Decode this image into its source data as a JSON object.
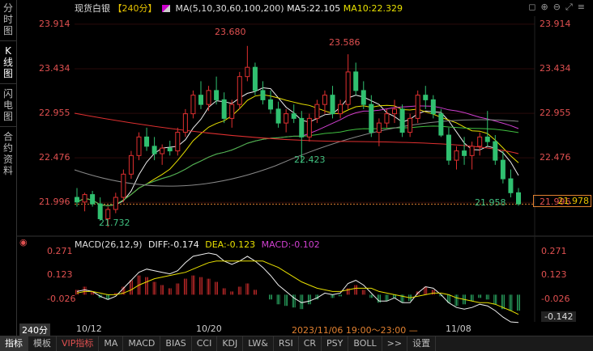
{
  "sidebar": {
    "items": [
      {
        "label": "分时图",
        "chars": [
          "分",
          "时",
          "图"
        ]
      },
      {
        "label": "K线图",
        "chars": [
          "K",
          "线",
          "图"
        ]
      },
      {
        "label": "闪电图",
        "chars": [
          "闪",
          "电",
          "图"
        ]
      },
      {
        "label": "合约资料",
        "chars": [
          "合",
          "约",
          "资",
          "料"
        ]
      }
    ]
  },
  "header": {
    "instrument": "现货白银",
    "period": "【240分】",
    "ma_label": "MA(5,10,30,60,100,200)",
    "ma5": "MA5:22.105",
    "ma10": "MA10:22.329"
  },
  "price_axis": {
    "left": [
      "23.914",
      "23.434",
      "22.955",
      "22.476",
      "21.996"
    ],
    "right": [
      "23.914",
      "23.434",
      "22.955",
      "22.476",
      "21.996"
    ],
    "current": "21.978"
  },
  "annotations": {
    "high1": "23.680",
    "high2": "23.586",
    "low1": "21.732",
    "low2": "22.423",
    "low3": "21.958"
  },
  "macd": {
    "header": "MACD(26,12,9)",
    "diff": "DIFF:-0.174",
    "dea": "DEA:-0.123",
    "macd": "MACD:-0.102",
    "axis": [
      "0.271",
      "0.123",
      "-0.026",
      "-0.142"
    ]
  },
  "dates": {
    "period_btn": "240分",
    "d1": "10/12",
    "d2": "10/20",
    "range": "2023/11/06 19:00～23:00 —",
    "d3": "11/08"
  },
  "bottom_tabs": [
    "指标",
    "模板",
    "VIP指标",
    "MA",
    "MACD",
    "BIAS",
    "CCI",
    "KDJ",
    "LW&",
    "RSI",
    "CR",
    "PSY",
    "BOLL",
    ">>",
    "设置"
  ],
  "colors": {
    "up": "#e03030",
    "down": "#30c070",
    "bg": "#000000"
  },
  "chart_data": {
    "type": "candlestick",
    "ylim": [
      21.65,
      24.0
    ],
    "ohlc": [
      [
        22.05,
        22.15,
        21.95,
        22.0
      ],
      [
        22.0,
        22.1,
        21.9,
        22.08
      ],
      [
        22.08,
        22.12,
        21.95,
        21.98
      ],
      [
        21.98,
        22.05,
        21.8,
        21.82
      ],
      [
        21.82,
        21.95,
        21.73,
        21.92
      ],
      [
        21.92,
        22.1,
        21.88,
        22.05
      ],
      [
        22.05,
        22.35,
        22.0,
        22.3
      ],
      [
        22.3,
        22.55,
        22.25,
        22.5
      ],
      [
        22.5,
        22.75,
        22.45,
        22.7
      ],
      [
        22.7,
        22.8,
        22.55,
        22.6
      ],
      [
        22.6,
        22.7,
        22.45,
        22.52
      ],
      [
        22.52,
        22.62,
        22.4,
        22.58
      ],
      [
        22.58,
        22.66,
        22.5,
        22.55
      ],
      [
        22.55,
        22.8,
        22.5,
        22.75
      ],
      [
        22.75,
        23.0,
        22.7,
        22.95
      ],
      [
        22.95,
        23.2,
        22.9,
        23.15
      ],
      [
        23.15,
        23.3,
        23.0,
        23.05
      ],
      [
        23.05,
        23.25,
        22.98,
        23.2
      ],
      [
        23.2,
        23.35,
        23.05,
        23.1
      ],
      [
        23.1,
        23.18,
        22.85,
        22.9
      ],
      [
        22.9,
        23.1,
        22.8,
        23.05
      ],
      [
        23.05,
        23.4,
        23.0,
        23.35
      ],
      [
        23.35,
        23.68,
        23.3,
        23.45
      ],
      [
        23.45,
        23.5,
        23.15,
        23.2
      ],
      [
        23.2,
        23.3,
        23.05,
        23.1
      ],
      [
        23.1,
        23.2,
        22.95,
        23.0
      ],
      [
        23.0,
        23.08,
        22.8,
        22.85
      ],
      [
        22.85,
        23.0,
        22.75,
        22.95
      ],
      [
        22.95,
        23.05,
        22.85,
        22.9
      ],
      [
        22.9,
        22.98,
        22.42,
        22.7
      ],
      [
        22.7,
        22.95,
        22.65,
        22.9
      ],
      [
        22.9,
        23.1,
        22.85,
        23.05
      ],
      [
        23.05,
        23.2,
        22.95,
        23.15
      ],
      [
        23.15,
        23.25,
        22.9,
        22.95
      ],
      [
        22.95,
        23.1,
        22.9,
        23.05
      ],
      [
        23.05,
        23.59,
        23.0,
        23.4
      ],
      [
        23.4,
        23.5,
        23.15,
        23.2
      ],
      [
        23.2,
        23.3,
        23.0,
        23.05
      ],
      [
        23.05,
        23.15,
        22.7,
        22.75
      ],
      [
        22.75,
        22.9,
        22.6,
        22.85
      ],
      [
        22.85,
        23.0,
        22.8,
        22.95
      ],
      [
        22.95,
        23.1,
        22.85,
        23.0
      ],
      [
        23.0,
        23.05,
        22.7,
        22.75
      ],
      [
        22.75,
        22.95,
        22.7,
        22.9
      ],
      [
        22.9,
        23.2,
        22.85,
        23.15
      ],
      [
        23.15,
        23.25,
        23.0,
        23.1
      ],
      [
        23.1,
        23.15,
        22.9,
        22.95
      ],
      [
        22.95,
        23.0,
        22.7,
        22.72
      ],
      [
        22.72,
        22.8,
        22.4,
        22.45
      ],
      [
        22.45,
        22.6,
        22.35,
        22.55
      ],
      [
        22.55,
        22.7,
        22.4,
        22.5
      ],
      [
        22.5,
        22.65,
        22.35,
        22.6
      ],
      [
        22.6,
        22.75,
        22.5,
        22.7
      ],
      [
        22.7,
        22.98,
        22.6,
        22.65
      ],
      [
        22.65,
        22.72,
        22.4,
        22.45
      ],
      [
        22.45,
        22.55,
        22.2,
        22.25
      ],
      [
        22.25,
        22.35,
        22.05,
        22.1
      ],
      [
        22.1,
        22.15,
        21.96,
        21.98
      ]
    ],
    "macd_hist": [
      0.03,
      0.05,
      0.02,
      -0.02,
      -0.03,
      0.01,
      0.05,
      0.09,
      0.12,
      0.11,
      0.08,
      0.06,
      0.04,
      0.07,
      0.1,
      0.12,
      0.11,
      0.1,
      0.08,
      0.04,
      0.02,
      0.05,
      0.07,
      0.03,
      0.0,
      -0.03,
      -0.06,
      -0.07,
      -0.08,
      -0.09,
      -0.06,
      -0.03,
      0.0,
      -0.02,
      -0.01,
      0.04,
      0.06,
      0.03,
      -0.02,
      -0.05,
      -0.04,
      -0.02,
      -0.05,
      -0.04,
      0.02,
      0.05,
      0.03,
      -0.01,
      -0.05,
      -0.07,
      -0.06,
      -0.04,
      -0.02,
      -0.03,
      -0.06,
      -0.09,
      -0.1,
      -0.1
    ],
    "diff_line": [
      0.02,
      0.03,
      0.02,
      -0.01,
      -0.03,
      -0.01,
      0.04,
      0.09,
      0.14,
      0.16,
      0.15,
      0.14,
      0.13,
      0.15,
      0.2,
      0.24,
      0.25,
      0.26,
      0.25,
      0.21,
      0.19,
      0.21,
      0.24,
      0.21,
      0.17,
      0.12,
      0.06,
      0.02,
      -0.02,
      -0.05,
      -0.04,
      -0.02,
      0.01,
      0.0,
      0.01,
      0.07,
      0.09,
      0.06,
      0.01,
      -0.04,
      -0.04,
      -0.02,
      -0.05,
      -0.05,
      0.01,
      0.05,
      0.04,
      0.0,
      -0.05,
      -0.08,
      -0.09,
      -0.08,
      -0.06,
      -0.07,
      -0.1,
      -0.14,
      -0.17,
      -0.174
    ],
    "dea_line": [
      0.01,
      0.02,
      0.02,
      0.01,
      0.0,
      0.0,
      0.01,
      0.03,
      0.06,
      0.08,
      0.1,
      0.11,
      0.12,
      0.13,
      0.14,
      0.16,
      0.18,
      0.2,
      0.21,
      0.21,
      0.21,
      0.21,
      0.21,
      0.21,
      0.21,
      0.19,
      0.17,
      0.14,
      0.11,
      0.08,
      0.06,
      0.04,
      0.03,
      0.02,
      0.02,
      0.03,
      0.04,
      0.04,
      0.04,
      0.02,
      0.01,
      0.0,
      -0.01,
      -0.02,
      -0.01,
      0.0,
      0.01,
      0.01,
      0.0,
      -0.02,
      -0.03,
      -0.04,
      -0.05,
      -0.05,
      -0.06,
      -0.08,
      -0.1,
      -0.123
    ]
  }
}
